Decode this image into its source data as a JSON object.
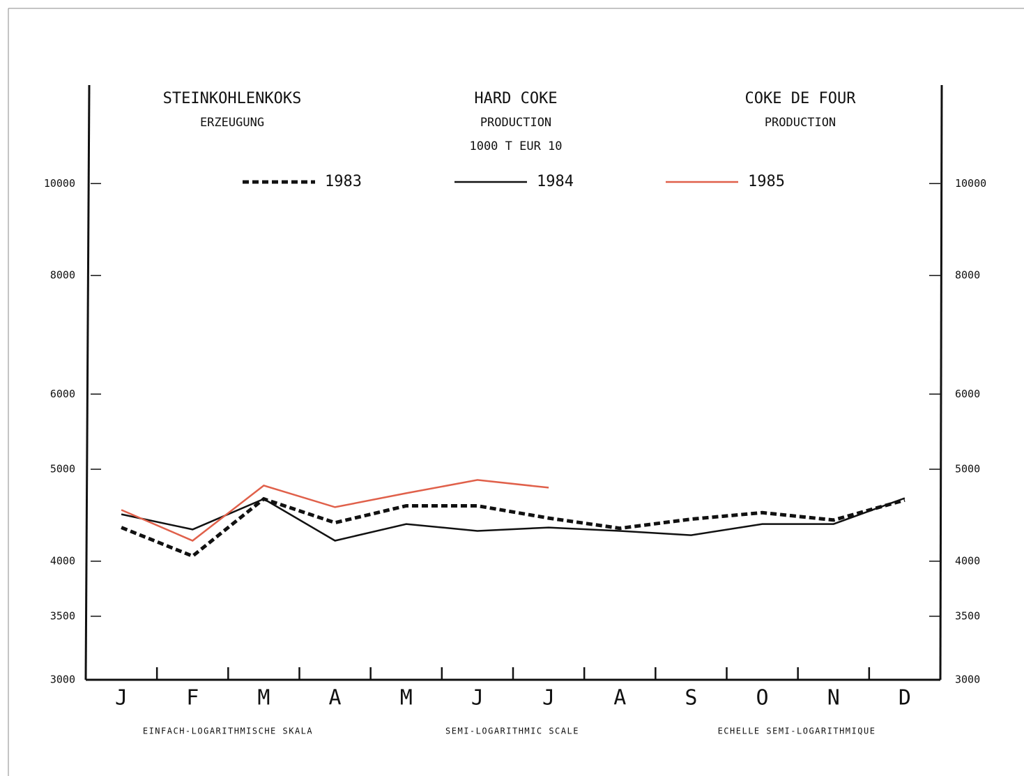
{
  "chart_data": {
    "type": "line",
    "titles": [
      [
        "STEINKOHLENKOKS",
        "ERZEUGUNG"
      ],
      [
        "HARD COKE",
        "PRODUCTION",
        "1000 T    EUR 10"
      ],
      [
        "COKE DE FOUR",
        "PRODUCTION"
      ]
    ],
    "footnotes": [
      "EINFACH-LOGARITHMISCHE SKALA",
      "SEMI-LOGARITHMIC SCALE",
      "ECHELLE SEMI-LOGARITHMIQUE"
    ],
    "categories": [
      "J",
      "F",
      "M",
      "A",
      "M",
      "J",
      "J",
      "A",
      "S",
      "O",
      "N",
      "D"
    ],
    "series": [
      {
        "name": "1983",
        "color": "#111111",
        "dashed": true,
        "values": [
          4341,
          4050,
          4653,
          4392,
          4575,
          4575,
          4441,
          4333,
          4430,
          4500,
          4420,
          4639
        ]
      },
      {
        "name": "1984",
        "color": "#111111",
        "dashed": false,
        "values": [
          4483,
          4320,
          4653,
          4204,
          4378,
          4305,
          4341,
          4305,
          4261,
          4378,
          4378,
          4661
        ]
      },
      {
        "name": "1985",
        "color": "#e0604a",
        "dashed": false,
        "values": [
          4530,
          4204,
          4806,
          4561,
          4718,
          4872,
          4782,
          null,
          null,
          null,
          null,
          null
        ]
      }
    ],
    "ylim": [
      3000,
      12700
    ],
    "log_y": true,
    "yticks": [
      3000,
      3500,
      4000,
      5000,
      6000,
      8000,
      10000
    ]
  }
}
